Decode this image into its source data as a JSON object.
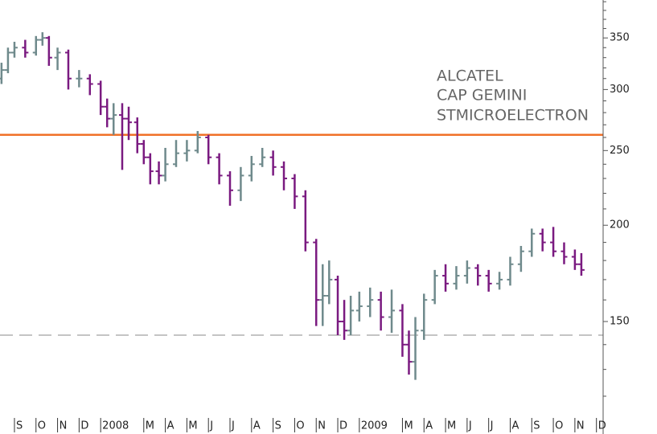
{
  "chart_data": {
    "type": "ohlc",
    "legend": [
      "ALCATEL",
      "CAP GEMINI",
      "STMICROELECTRON"
    ],
    "log_scale": true,
    "up_color": "#6f8a8c",
    "down_color": "#7a1a80",
    "x": [
      -0.6,
      -0.3,
      0,
      0.5,
      1,
      1.3,
      1.6,
      2.0,
      2.5,
      3.0,
      3.5,
      4.0,
      4.3,
      4.6,
      5.0,
      5.3,
      5.7,
      6.0,
      6.3,
      6.7,
      7.0,
      7.5,
      8.0,
      8.5,
      9.0,
      9.5,
      10.0,
      10.5,
      11.0,
      11.5,
      12.0,
      12.5,
      13.0,
      13.5,
      14.0,
      14.3,
      14.6,
      15.0,
      15.3,
      15.6,
      16.0,
      16.5,
      17.0,
      17.5,
      18.0,
      18.3,
      18.6,
      19.0,
      19.5,
      20.0,
      20.5,
      21.0,
      21.5,
      22.0,
      22.5,
      23.0,
      23.5,
      24.0,
      24.5,
      25.0,
      25.5,
      26.0,
      26.3
    ],
    "open": [
      310,
      318,
      335,
      340,
      335,
      348,
      350,
      330,
      335,
      310,
      310,
      305,
      285,
      275,
      278,
      275,
      272,
      255,
      245,
      235,
      232,
      240,
      248,
      250,
      260,
      245,
      232,
      222,
      232,
      240,
      245,
      238,
      230,
      218,
      190,
      160,
      162,
      170,
      150,
      146,
      155,
      157,
      160,
      152,
      155,
      140,
      133,
      146,
      160,
      172,
      168,
      172,
      176,
      172,
      168,
      170,
      178,
      185,
      195,
      190,
      185,
      182,
      178
    ],
    "high": [
      325,
      340,
      346,
      348,
      352,
      356,
      352,
      340,
      338,
      318,
      314,
      308,
      292,
      288,
      288,
      285,
      276,
      258,
      248,
      242,
      252,
      258,
      258,
      265,
      262,
      248,
      235,
      238,
      246,
      252,
      250,
      242,
      233,
      222,
      192,
      178,
      180,
      172,
      160,
      162,
      164,
      166,
      164,
      165,
      158,
      146,
      152,
      163,
      175,
      178,
      177,
      180,
      178,
      175,
      174,
      182,
      188,
      198,
      198,
      199,
      190,
      186,
      184
    ],
    "low": [
      305,
      315,
      330,
      330,
      332,
      342,
      322,
      318,
      300,
      302,
      295,
      278,
      268,
      262,
      236,
      258,
      248,
      240,
      226,
      226,
      228,
      238,
      242,
      248,
      240,
      226,
      212,
      215,
      228,
      238,
      232,
      222,
      210,
      185,
      148,
      148,
      158,
      144,
      142,
      144,
      150,
      152,
      146,
      145,
      135,
      128,
      126,
      142,
      158,
      164,
      165,
      168,
      167,
      164,
      165,
      167,
      174,
      182,
      185,
      182,
      178,
      175,
      172
    ],
    "close": [
      318,
      335,
      340,
      335,
      348,
      350,
      330,
      335,
      310,
      310,
      305,
      285,
      275,
      278,
      275,
      272,
      255,
      245,
      235,
      232,
      240,
      248,
      250,
      260,
      245,
      232,
      222,
      232,
      240,
      245,
      238,
      230,
      218,
      190,
      160,
      162,
      170,
      150,
      146,
      155,
      157,
      160,
      152,
      155,
      140,
      133,
      146,
      160,
      172,
      168,
      172,
      176,
      172,
      168,
      170,
      178,
      185,
      195,
      190,
      185,
      182,
      178,
      175
    ],
    "xlim": [
      -0.67,
      27.31
    ],
    "ylim": [
      113,
      392
    ],
    "xticks": [
      {
        "value": 0,
        "label": "S"
      },
      {
        "value": 1,
        "label": "O"
      },
      {
        "value": 2,
        "label": "N"
      },
      {
        "value": 3,
        "label": "D"
      },
      {
        "value": 4,
        "label": "2008"
      },
      {
        "value": 6,
        "label": "M"
      },
      {
        "value": 7,
        "label": "A"
      },
      {
        "value": 8,
        "label": "M"
      },
      {
        "value": 9,
        "label": "J"
      },
      {
        "value": 10,
        "label": "J"
      },
      {
        "value": 11,
        "label": "A"
      },
      {
        "value": 12,
        "label": "S"
      },
      {
        "value": 13,
        "label": "O"
      },
      {
        "value": 14,
        "label": "N"
      },
      {
        "value": 15,
        "label": "D"
      },
      {
        "value": 16,
        "label": "2009"
      },
      {
        "value": 18,
        "label": "M"
      },
      {
        "value": 19,
        "label": "A"
      },
      {
        "value": 20,
        "label": "M"
      },
      {
        "value": 21,
        "label": "J"
      },
      {
        "value": 22,
        "label": "J"
      },
      {
        "value": 23,
        "label": "A"
      },
      {
        "value": 24,
        "label": "S"
      },
      {
        "value": 25,
        "label": "O"
      },
      {
        "value": 26,
        "label": "N"
      },
      {
        "value": 27,
        "label": "D"
      }
    ],
    "yticks": [
      150,
      200,
      250,
      300,
      350
    ],
    "yminorticks": [
      120,
      130,
      140,
      160,
      170,
      180,
      190,
      210,
      220,
      230,
      240,
      260,
      270,
      280,
      290,
      310,
      320,
      330,
      340,
      360,
      370,
      380,
      390
    ],
    "reference_lines": [
      {
        "value": 262,
        "color": "#f07028",
        "dashed": false
      },
      {
        "value": 144,
        "color": "#888888",
        "dashed": true
      }
    ]
  }
}
